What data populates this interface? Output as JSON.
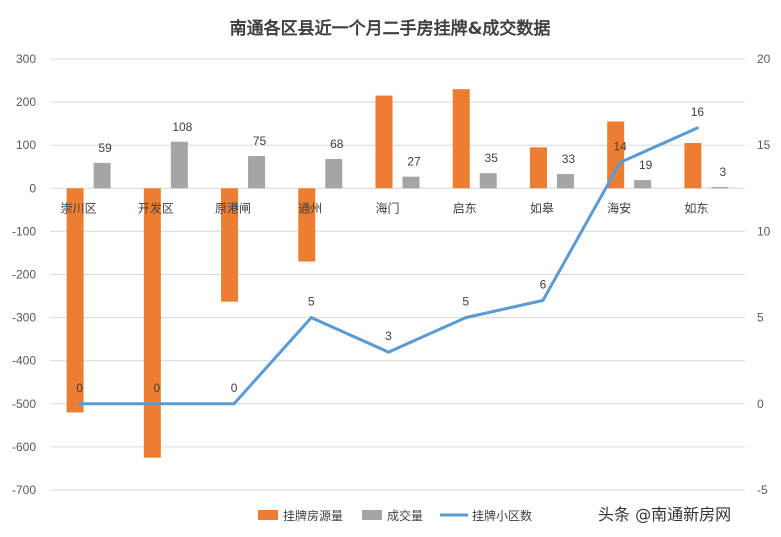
{
  "chart_data": {
    "type": "bar",
    "title": "南通各区县近一个月二手房挂牌&成交数据",
    "categories": [
      "崇川区",
      "开发区",
      "原港闸",
      "通州",
      "海门",
      "启东",
      "如皋",
      "海安",
      "如东"
    ],
    "series": [
      {
        "name": "挂牌房源量",
        "type": "bar",
        "axis": "left",
        "color": "#ED7D31",
        "values": [
          -520,
          -625,
          -263,
          -170,
          215,
          230,
          95,
          155,
          105
        ]
      },
      {
        "name": "成交量",
        "type": "bar",
        "axis": "left",
        "color": "#A5A5A5",
        "values": [
          59,
          108,
          75,
          68,
          27,
          35,
          33,
          19,
          3
        ]
      },
      {
        "name": "挂牌小区数",
        "type": "line",
        "axis": "right",
        "color": "#5B9BD5",
        "values": [
          0,
          0,
          0,
          5,
          3,
          5,
          6,
          14,
          16
        ]
      }
    ],
    "ylim_left": [
      -700,
      300
    ],
    "yticks_left": [
      "300",
      "200",
      "100",
      "0",
      "-100",
      "-200",
      "-300",
      "-400",
      "-500",
      "-600",
      "-700"
    ],
    "ylim_right": [
      -5,
      20
    ],
    "yticks_right": [
      "20",
      "15",
      "10",
      "5",
      "0",
      "-5"
    ],
    "grid": true,
    "legend_position": "bottom"
  },
  "watermark": "头条 @南通新房网"
}
